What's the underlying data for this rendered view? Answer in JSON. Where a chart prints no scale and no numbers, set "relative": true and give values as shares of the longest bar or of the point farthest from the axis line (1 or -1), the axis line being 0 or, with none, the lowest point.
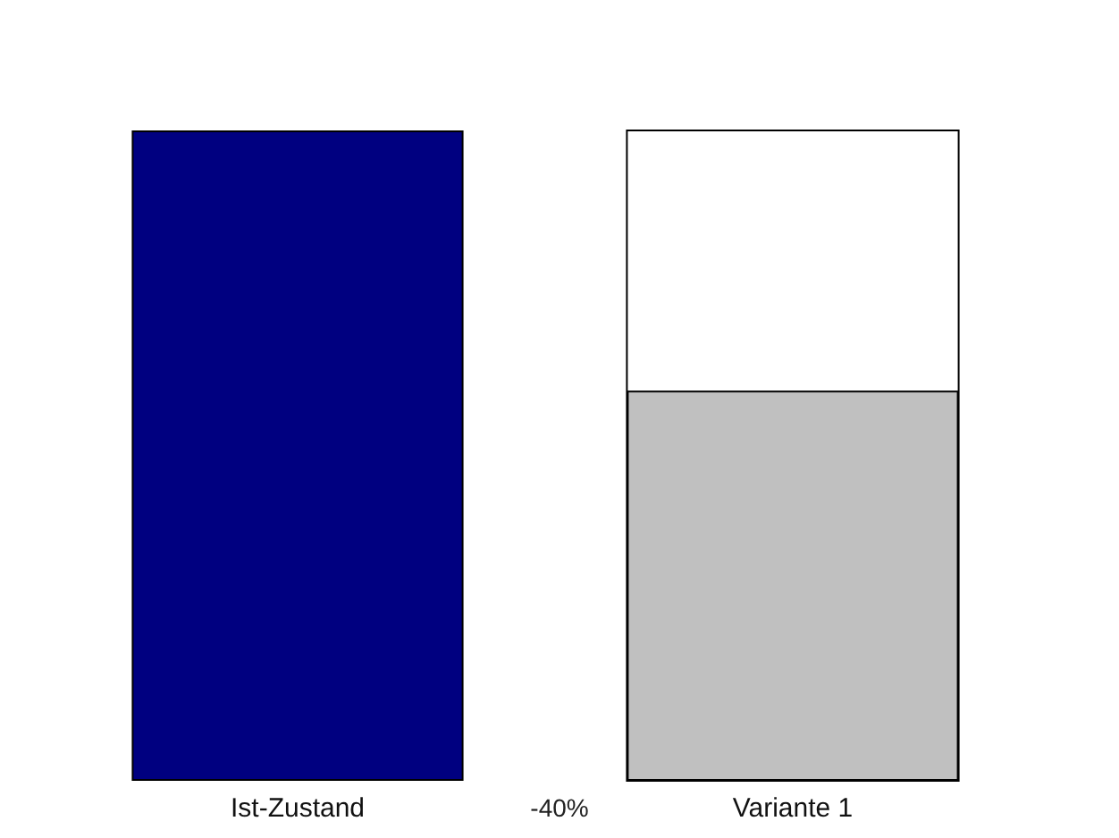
{
  "chart_data": {
    "type": "bar",
    "relative": true,
    "categories": [
      "Ist-Zustand",
      "Variante 1"
    ],
    "values": [
      1,
      0.6
    ],
    "colors": [
      "#000080",
      "#c0c0c0"
    ],
    "annotations": [
      "-40%"
    ]
  }
}
